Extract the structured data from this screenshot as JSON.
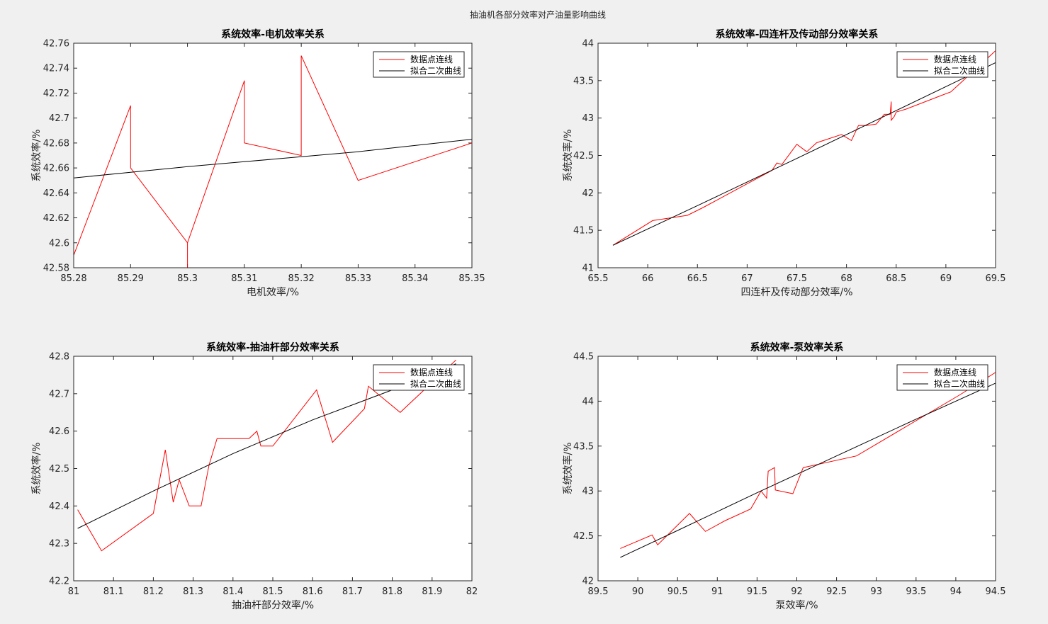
{
  "figure": {
    "title": "抽油机各部分效率对产油量影响曲线"
  },
  "legend_labels": [
    "数据点连线",
    "拟合二次曲线"
  ],
  "colors": {
    "data_line": "#ff0000",
    "fit_line": "#000000"
  },
  "chart_data": [
    {
      "type": "line",
      "title": "系统效率-电机效率关系",
      "xlabel": "电机效率/%",
      "ylabel": "系统效率/%",
      "xlim": [
        85.28,
        85.35
      ],
      "ylim": [
        42.58,
        42.76
      ],
      "xticks": [
        85.28,
        85.29,
        85.3,
        85.31,
        85.32,
        85.33,
        85.34,
        85.35
      ],
      "xtick_labels": [
        "85.28",
        "85.29",
        "85.3",
        "85.31",
        "85.32",
        "85.33",
        "85.34",
        "85.35"
      ],
      "yticks": [
        42.58,
        42.6,
        42.62,
        42.64,
        42.66,
        42.68,
        42.7,
        42.72,
        42.74,
        42.76
      ],
      "ytick_labels": [
        "42.58",
        "42.6",
        "42.62",
        "42.64",
        "42.66",
        "42.68",
        "42.7",
        "42.72",
        "42.74",
        "42.76"
      ],
      "legend_location": "top-right",
      "series": [
        {
          "name": "数据点连线",
          "x": [
            85.28,
            85.28,
            85.29,
            85.29,
            85.3,
            85.3,
            85.3,
            85.31,
            85.31,
            85.32,
            85.32,
            85.33,
            85.35
          ],
          "y": [
            42.71,
            42.59,
            42.71,
            42.66,
            42.6,
            42.58,
            42.6,
            42.73,
            42.68,
            42.67,
            42.75,
            42.65,
            42.68
          ]
        },
        {
          "name": "拟合二次曲线",
          "x": [
            85.28,
            85.29,
            85.3,
            85.31,
            85.32,
            85.33,
            85.34,
            85.35
          ],
          "y": [
            42.652,
            42.6565,
            42.661,
            42.665,
            42.669,
            42.673,
            42.678,
            42.683
          ]
        }
      ]
    },
    {
      "type": "line",
      "title": "系统效率-四连杆及传动部分效率关系",
      "xlabel": "四连杆及传动部分效率/%",
      "ylabel": "系统效率/%",
      "xlim": [
        65.5,
        69.5
      ],
      "ylim": [
        41,
        44
      ],
      "xticks": [
        65.5,
        66,
        66.5,
        67,
        67.5,
        68,
        68.5,
        69,
        69.5
      ],
      "xtick_labels": [
        "65.5",
        "66",
        "66.5",
        "67",
        "67.5",
        "68",
        "68.5",
        "69",
        "69.5"
      ],
      "yticks": [
        41,
        41.5,
        42,
        42.5,
        43,
        43.5,
        44
      ],
      "ytick_labels": [
        "41",
        "41.5",
        "42",
        "42.5",
        "43",
        "43.5",
        "44"
      ],
      "legend_location": "top-right",
      "series": [
        {
          "name": "数据点连线",
          "x": [
            65.65,
            66.05,
            66.2,
            66.4,
            66.55,
            67.25,
            67.3,
            67.35,
            67.5,
            67.6,
            67.7,
            67.95,
            68.05,
            68.12,
            68.2,
            68.3,
            68.38,
            68.44,
            68.45,
            68.45,
            68.48,
            68.5,
            68.6,
            68.95,
            69.05,
            69.5
          ],
          "y": [
            41.3,
            41.63,
            41.66,
            41.7,
            41.8,
            42.3,
            42.4,
            42.38,
            42.65,
            42.55,
            42.67,
            42.78,
            42.7,
            42.9,
            42.9,
            42.92,
            43.05,
            43.05,
            43.22,
            42.97,
            43.02,
            43.08,
            43.12,
            43.3,
            43.35,
            43.9
          ]
        },
        {
          "name": "拟合二次曲线",
          "x": [
            65.65,
            66.5,
            67.5,
            68.5,
            69.5
          ],
          "y": [
            41.3,
            41.83,
            42.46,
            43.1,
            43.74
          ]
        }
      ]
    },
    {
      "type": "line",
      "title": "系统效率-抽油杆部分效率关系",
      "xlabel": "抽油杆部分效率/%",
      "ylabel": "系统效率/%",
      "xlim": [
        81,
        82
      ],
      "ylim": [
        42.2,
        42.8
      ],
      "xticks": [
        81,
        81.1,
        81.2,
        81.3,
        81.4,
        81.5,
        81.6,
        81.7,
        81.8,
        81.9,
        82
      ],
      "xtick_labels": [
        "81",
        "81.1",
        "81.2",
        "81.3",
        "81.4",
        "81.5",
        "81.6",
        "81.7",
        "81.8",
        "81.9",
        "82"
      ],
      "yticks": [
        42.2,
        42.3,
        42.4,
        42.5,
        42.6,
        42.7,
        42.8
      ],
      "ytick_labels": [
        "42.2",
        "42.3",
        "42.4",
        "42.5",
        "42.6",
        "42.7",
        "42.8"
      ],
      "legend_location": "top-right",
      "series": [
        {
          "name": "数据点连线",
          "x": [
            81.01,
            81.07,
            81.2,
            81.23,
            81.25,
            81.265,
            81.29,
            81.32,
            81.34,
            81.36,
            81.44,
            81.46,
            81.47,
            81.5,
            81.61,
            81.65,
            81.73,
            81.74,
            81.82,
            81.96
          ],
          "y": [
            42.39,
            42.28,
            42.38,
            42.55,
            42.41,
            42.47,
            42.4,
            42.4,
            42.51,
            42.58,
            42.58,
            42.6,
            42.56,
            42.56,
            42.71,
            42.57,
            42.66,
            42.72,
            42.65,
            42.79
          ]
        },
        {
          "name": "拟合二次曲线",
          "x": [
            81.01,
            81.2,
            81.4,
            81.6,
            81.8,
            81.96
          ],
          "y": [
            42.34,
            42.44,
            42.54,
            42.63,
            42.71,
            42.78
          ]
        }
      ]
    },
    {
      "type": "line",
      "title": "系统效率-泵效率关系",
      "xlabel": "泵效率/%",
      "ylabel": "系统效率/%",
      "xlim": [
        89.5,
        94.5
      ],
      "ylim": [
        42,
        44.5
      ],
      "xticks": [
        89.5,
        90,
        90.5,
        91,
        91.5,
        92,
        92.5,
        93,
        93.5,
        94,
        94.5
      ],
      "xtick_labels": [
        "89.5",
        "90",
        "90.5",
        "91",
        "91.5",
        "92",
        "92.5",
        "93",
        "93.5",
        "94",
        "94.5"
      ],
      "yticks": [
        42,
        42.5,
        43,
        43.5,
        44,
        44.5
      ],
      "ytick_labels": [
        "42",
        "42.5",
        "43",
        "43.5",
        "44",
        "44.5"
      ],
      "legend_location": "top-right",
      "series": [
        {
          "name": "数据点连线",
          "x": [
            89.78,
            90.18,
            90.25,
            90.65,
            90.85,
            91.1,
            91.42,
            91.55,
            91.62,
            91.64,
            91.72,
            91.73,
            91.95,
            92.08,
            92.75,
            94.05,
            94.5
          ],
          "y": [
            42.36,
            42.51,
            42.4,
            42.75,
            42.55,
            42.67,
            42.8,
            43.0,
            42.92,
            43.22,
            43.26,
            43.01,
            42.97,
            43.26,
            43.39,
            44.07,
            44.32
          ]
        },
        {
          "name": "拟合二次曲线",
          "x": [
            89.78,
            90.5,
            91.5,
            92.5,
            93.5,
            94.5
          ],
          "y": [
            42.26,
            42.56,
            42.98,
            43.39,
            43.8,
            44.2
          ]
        }
      ]
    }
  ]
}
